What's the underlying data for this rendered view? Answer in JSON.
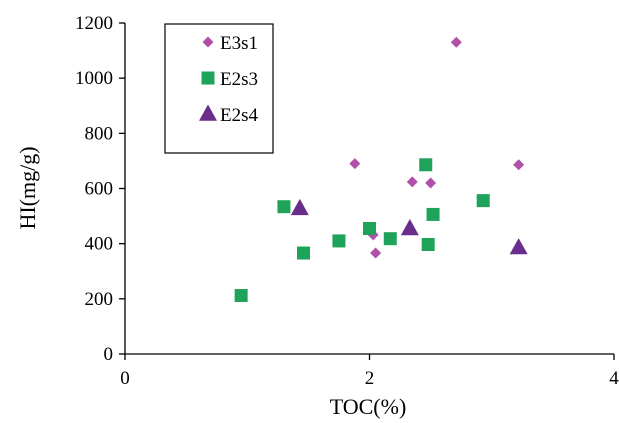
{
  "chart_data": {
    "type": "scatter",
    "xlabel": "TOC(%)",
    "ylabel": "HI(mg/g)",
    "xlim": [
      0,
      4
    ],
    "ylim": [
      0,
      1200
    ],
    "x_ticks": [
      "0",
      "2",
      "4"
    ],
    "y_ticks": [
      "0",
      "200",
      "400",
      "600",
      "800",
      "1000",
      "1200"
    ],
    "grid": false,
    "legend_position": "top-left",
    "series": [
      {
        "name": "E3s1",
        "marker": "diamond",
        "color": "#b050a8",
        "points": [
          {
            "x": 2.71,
            "y": 1130
          },
          {
            "x": 1.88,
            "y": 690
          },
          {
            "x": 3.22,
            "y": 686
          },
          {
            "x": 2.35,
            "y": 624
          },
          {
            "x": 2.5,
            "y": 620
          },
          {
            "x": 2.03,
            "y": 432
          },
          {
            "x": 2.05,
            "y": 366
          }
        ]
      },
      {
        "name": "E2s3",
        "marker": "square",
        "color": "#1fa25a",
        "points": [
          {
            "x": 2.46,
            "y": 686
          },
          {
            "x": 2.93,
            "y": 556
          },
          {
            "x": 1.3,
            "y": 534
          },
          {
            "x": 2.52,
            "y": 506
          },
          {
            "x": 2.0,
            "y": 455
          },
          {
            "x": 2.17,
            "y": 418
          },
          {
            "x": 1.75,
            "y": 410
          },
          {
            "x": 2.48,
            "y": 397
          },
          {
            "x": 1.46,
            "y": 366
          },
          {
            "x": 0.95,
            "y": 212
          }
        ]
      },
      {
        "name": "E2s4",
        "marker": "triangle",
        "color": "#6a2d8c",
        "points": [
          {
            "x": 1.43,
            "y": 528
          },
          {
            "x": 2.33,
            "y": 455
          },
          {
            "x": 3.22,
            "y": 386
          }
        ]
      }
    ]
  }
}
